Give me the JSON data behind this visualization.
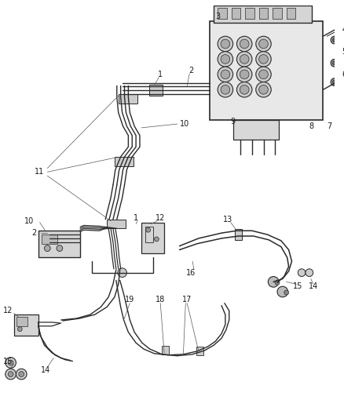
{
  "background_color": "#f5f5f5",
  "line_color": "#2a2a2a",
  "label_color": "#1a1a1a",
  "label_fontsize": 7.0,
  "fig_width": 4.38,
  "fig_height": 5.33,
  "dpi": 100
}
